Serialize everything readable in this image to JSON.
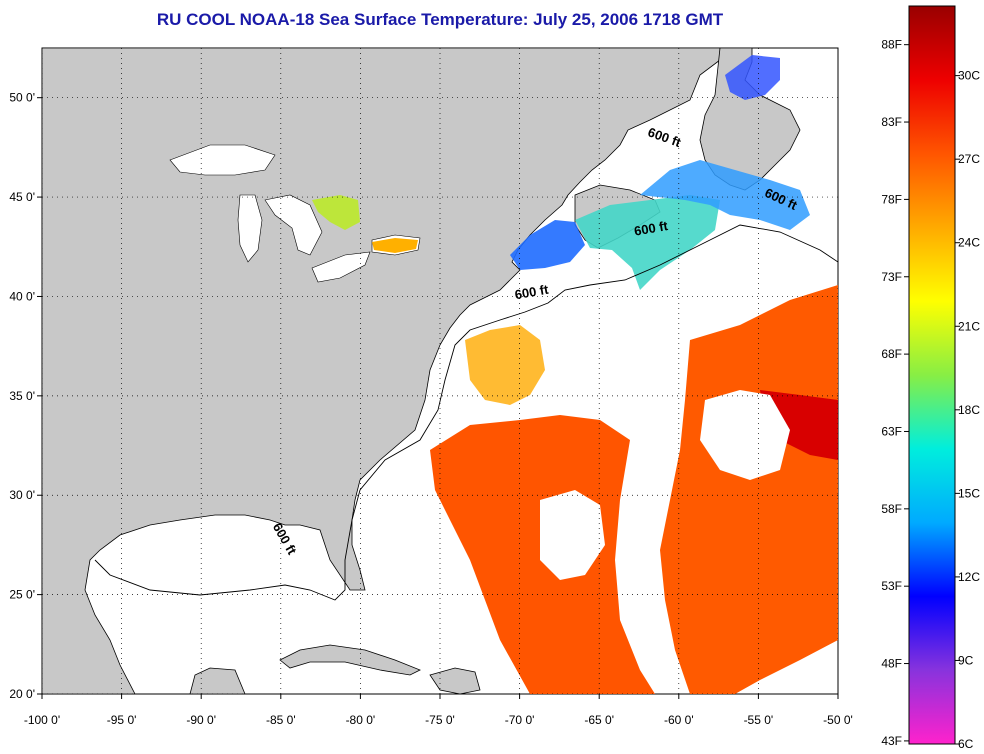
{
  "title": "RU COOL  NOAA-18  Sea Surface Temperature:  July 25, 2006 1718 GMT",
  "map": {
    "lon_range": [
      -100,
      -50
    ],
    "lat_range": [
      20,
      52.5
    ],
    "lon_ticks": [
      {
        "value": -100,
        "label": "-100 0'"
      },
      {
        "value": -95,
        "label": "-95 0'"
      },
      {
        "value": -90,
        "label": "-90 0'"
      },
      {
        "value": -85,
        "label": "-85 0'"
      },
      {
        "value": -80,
        "label": "-80 0'"
      },
      {
        "value": -75,
        "label": "-75 0'"
      },
      {
        "value": -70,
        "label": "-70 0'"
      },
      {
        "value": -65,
        "label": "-65 0'"
      },
      {
        "value": -60,
        "label": "-60 0'"
      },
      {
        "value": -55,
        "label": "-55 0'"
      },
      {
        "value": -50,
        "label": "-50 0'"
      }
    ],
    "lat_ticks": [
      {
        "value": 20,
        "label": "20 0'"
      },
      {
        "value": 25,
        "label": "25 0'"
      },
      {
        "value": 30,
        "label": "30 0'"
      },
      {
        "value": 35,
        "label": "35 0'"
      },
      {
        "value": 40,
        "label": "40 0'"
      },
      {
        "value": 45,
        "label": "45 0'"
      },
      {
        "value": 50,
        "label": "50 0'"
      }
    ],
    "grid": true,
    "land_color": "#c8c8c8",
    "isobath_labels": [
      {
        "text": "600 ft",
        "lon": -61,
        "lat": 47.8,
        "angle": 20
      },
      {
        "text": "600 ft",
        "lon": -53.7,
        "lat": 44.7,
        "angle": 25
      },
      {
        "text": "600 ft",
        "lon": -61.7,
        "lat": 43.2,
        "angle": -10
      },
      {
        "text": "600 ft",
        "lon": -69.2,
        "lat": 40.0,
        "angle": -10
      },
      {
        "text": "600 ft",
        "lon": -85.0,
        "lat": 27.7,
        "angle": 60
      }
    ]
  },
  "colorbar": {
    "fahrenheit_labels": [
      {
        "value": 88,
        "label": "88F"
      },
      {
        "value": 83,
        "label": "83F"
      },
      {
        "value": 78,
        "label": "78F"
      },
      {
        "value": 73,
        "label": "73F"
      },
      {
        "value": 68,
        "label": "68F"
      },
      {
        "value": 63,
        "label": "63F"
      },
      {
        "value": 58,
        "label": "58F"
      },
      {
        "value": 53,
        "label": "53F"
      },
      {
        "value": 48,
        "label": "48F"
      },
      {
        "value": 43,
        "label": "43F"
      }
    ],
    "celsius_labels": [
      {
        "value": 30,
        "label": "30C"
      },
      {
        "value": 27,
        "label": "27C"
      },
      {
        "value": 24,
        "label": "24C"
      },
      {
        "value": 21,
        "label": "21C"
      },
      {
        "value": 18,
        "label": "18C"
      },
      {
        "value": 15,
        "label": "15C"
      },
      {
        "value": 12,
        "label": "12C"
      },
      {
        "value": 9,
        "label": "9C"
      },
      {
        "value": 6,
        "label": "6C"
      }
    ],
    "colors": [
      "#ff22cc",
      "#8833dd",
      "#0000ff",
      "#00aaff",
      "#00eedd",
      "#88ee44",
      "#ffff00",
      "#ffaa00",
      "#ff5500",
      "#ee0000",
      "#990000"
    ]
  }
}
